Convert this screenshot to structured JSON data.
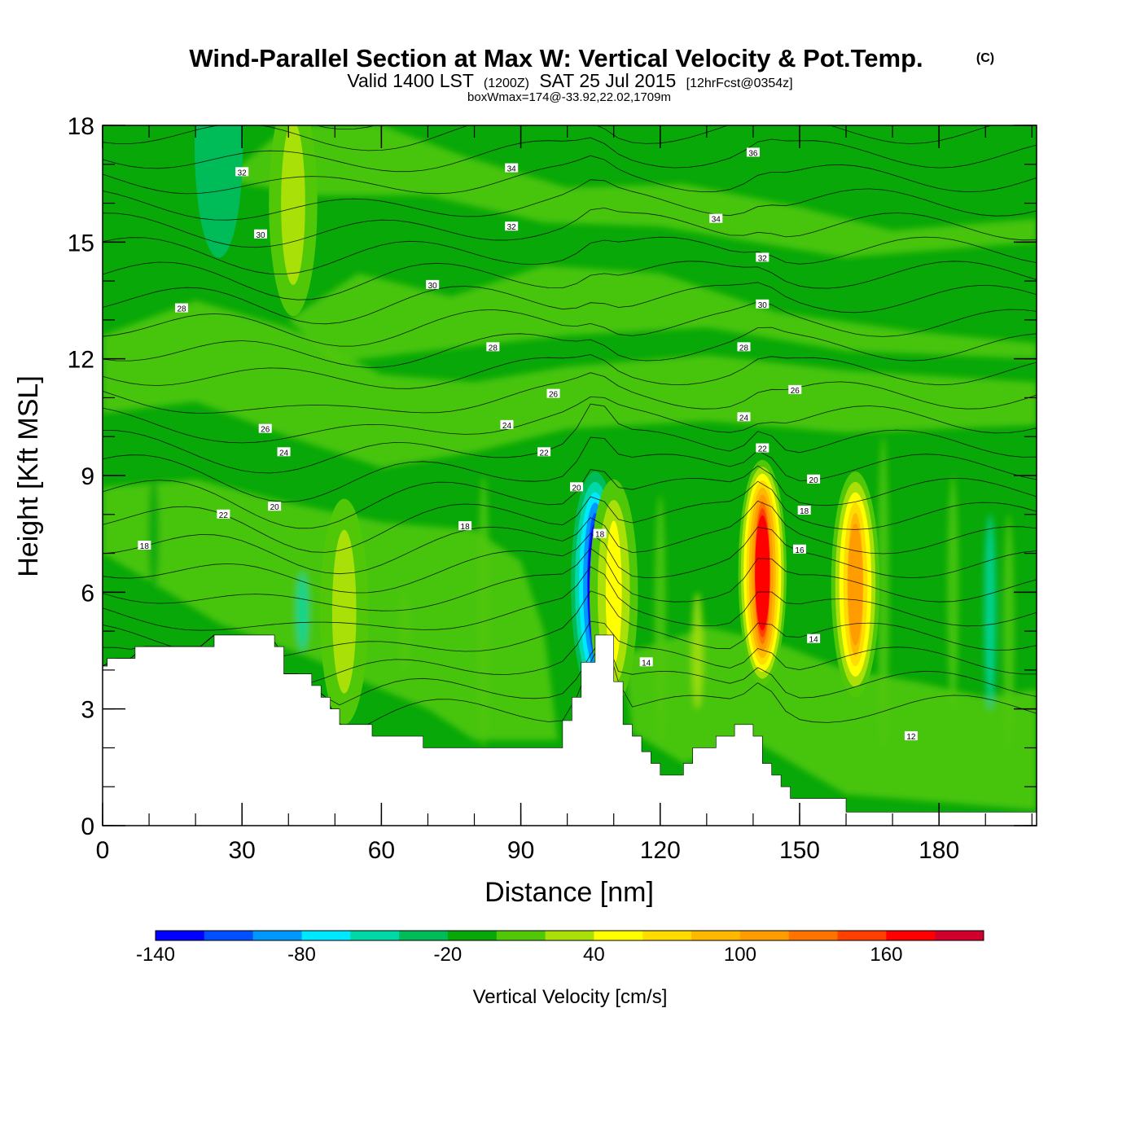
{
  "title": {
    "main": "Wind-Parallel Section at Max W: Vertical Velocity & Pot.Temp.",
    "copyright": "(C)",
    "valid_pre": "Valid 1400 LST",
    "valid_utc": "(1200Z)",
    "valid_date": "SAT 25 Jul 2015",
    "forecast": "[12hrFcst@0354z]",
    "boxwmax": "boxWmax=174@-33.92,22.02,1709m"
  },
  "chart_data": {
    "type": "heatmap",
    "xlabel": "Distance [nm]",
    "ylabel": "Height [Kft MSL]",
    "xlim": [
      0,
      201
    ],
    "ylim": [
      0,
      18
    ],
    "x_ticks": [
      0,
      30,
      60,
      90,
      120,
      150,
      180
    ],
    "x_minor_step": 10,
    "y_ticks": [
      0,
      3,
      6,
      9,
      12,
      15,
      18
    ],
    "y_minor_step": 1,
    "colorbar": {
      "label": "Vertical Velocity [cm/s]",
      "levels": [
        -140,
        -120,
        -100,
        -80,
        -60,
        -40,
        -20,
        0,
        20,
        40,
        60,
        80,
        100,
        120,
        140,
        160,
        180
      ],
      "tick_labels": [
        -140,
        -80,
        -20,
        40,
        100,
        160
      ],
      "colors": [
        "#0000ff",
        "#0050ff",
        "#0098ff",
        "#00e8ff",
        "#00d8a8",
        "#00bc58",
        "#08a808",
        "#50c808",
        "#a8e008",
        "#ffff00",
        "#ffdc00",
        "#ffb800",
        "#ff9c00",
        "#ff7400",
        "#ff4000",
        "#ff0000",
        "#d0002c"
      ]
    },
    "velocity_cores": [
      {
        "x": 106,
        "y": 6.2,
        "value": -130
      },
      {
        "x": 110,
        "y": 6.0,
        "value": 60
      },
      {
        "x": 142,
        "y": 6.5,
        "value": 174
      },
      {
        "x": 162,
        "y": 6.2,
        "value": 110
      },
      {
        "x": 41,
        "y": 16,
        "value": 30
      },
      {
        "x": 52,
        "y": 5.5,
        "value": 30
      },
      {
        "x": 25,
        "y": 17.5,
        "value": -40
      }
    ],
    "terrain_top": [
      [
        0,
        4.1
      ],
      [
        1,
        4.1
      ],
      [
        1,
        4.3
      ],
      [
        7,
        4.3
      ],
      [
        7,
        4.6
      ],
      [
        24,
        4.6
      ],
      [
        24,
        4.9
      ],
      [
        37,
        4.9
      ],
      [
        37,
        4.6
      ],
      [
        39,
        4.6
      ],
      [
        39,
        3.9
      ],
      [
        45,
        3.9
      ],
      [
        45,
        3.6
      ],
      [
        47,
        3.6
      ],
      [
        47,
        3.3
      ],
      [
        49,
        3.3
      ],
      [
        49,
        3.0
      ],
      [
        51,
        3.0
      ],
      [
        51,
        2.6
      ],
      [
        58,
        2.6
      ],
      [
        58,
        2.3
      ],
      [
        69,
        2.3
      ],
      [
        69,
        2.0
      ],
      [
        99,
        2.0
      ],
      [
        99,
        2.7
      ],
      [
        101,
        2.7
      ],
      [
        101,
        3.3
      ],
      [
        103,
        3.3
      ],
      [
        103,
        4.2
      ],
      [
        106,
        4.2
      ],
      [
        106,
        4.9
      ],
      [
        110,
        4.9
      ],
      [
        110,
        3.7
      ],
      [
        112,
        3.7
      ],
      [
        112,
        2.6
      ],
      [
        114,
        2.6
      ],
      [
        114,
        2.3
      ],
      [
        116,
        2.3
      ],
      [
        116,
        1.9
      ],
      [
        118,
        1.9
      ],
      [
        118,
        1.6
      ],
      [
        120,
        1.6
      ],
      [
        120,
        1.3
      ],
      [
        125,
        1.3
      ],
      [
        125,
        1.6
      ],
      [
        127,
        1.6
      ],
      [
        127,
        2.0
      ],
      [
        132,
        2.0
      ],
      [
        132,
        2.3
      ],
      [
        136,
        2.3
      ],
      [
        136,
        2.6
      ],
      [
        140,
        2.6
      ],
      [
        140,
        2.3
      ],
      [
        142,
        2.3
      ],
      [
        142,
        1.6
      ],
      [
        144,
        1.6
      ],
      [
        144,
        1.3
      ],
      [
        146,
        1.3
      ],
      [
        146,
        1.0
      ],
      [
        148,
        1.0
      ],
      [
        148,
        0.7
      ],
      [
        160,
        0.7
      ],
      [
        160,
        0.35
      ],
      [
        201,
        0.35
      ]
    ],
    "theta_contours": [
      {
        "label": "12",
        "x": 174,
        "y": 2.3
      },
      {
        "label": "14",
        "x": 117,
        "y": 4.2
      },
      {
        "label": "14",
        "x": 153,
        "y": 4.8
      },
      {
        "label": "16",
        "x": 150,
        "y": 7.1
      },
      {
        "label": "18",
        "x": 9,
        "y": 7.2
      },
      {
        "label": "18",
        "x": 78,
        "y": 7.7
      },
      {
        "label": "18",
        "x": 107,
        "y": 7.5
      },
      {
        "label": "18",
        "x": 151,
        "y": 8.1
      },
      {
        "label": "20",
        "x": 37,
        "y": 8.2
      },
      {
        "label": "20",
        "x": 102,
        "y": 8.7
      },
      {
        "label": "20",
        "x": 153,
        "y": 8.9
      },
      {
        "label": "22",
        "x": 26,
        "y": 8.0
      },
      {
        "label": "22",
        "x": 95,
        "y": 9.6
      },
      {
        "label": "22",
        "x": 142,
        "y": 9.7
      },
      {
        "label": "24",
        "x": 39,
        "y": 9.6
      },
      {
        "label": "24",
        "x": 87,
        "y": 10.3
      },
      {
        "label": "24",
        "x": 138,
        "y": 10.5
      },
      {
        "label": "26",
        "x": 35,
        "y": 10.2
      },
      {
        "label": "26",
        "x": 97,
        "y": 11.1
      },
      {
        "label": "26",
        "x": 149,
        "y": 11.2
      },
      {
        "label": "28",
        "x": 17,
        "y": 13.3
      },
      {
        "label": "28",
        "x": 84,
        "y": 12.3
      },
      {
        "label": "28",
        "x": 138,
        "y": 12.3
      },
      {
        "label": "30",
        "x": 34,
        "y": 15.2
      },
      {
        "label": "30",
        "x": 71,
        "y": 13.9
      },
      {
        "label": "30",
        "x": 142,
        "y": 13.4
      },
      {
        "label": "32",
        "x": 30,
        "y": 16.8
      },
      {
        "label": "32",
        "x": 88,
        "y": 15.4
      },
      {
        "label": "32",
        "x": 142,
        "y": 14.6
      },
      {
        "label": "34",
        "x": 88,
        "y": 16.9
      },
      {
        "label": "34",
        "x": 132,
        "y": 15.6
      },
      {
        "label": "36",
        "x": 140,
        "y": 17.3
      }
    ]
  }
}
